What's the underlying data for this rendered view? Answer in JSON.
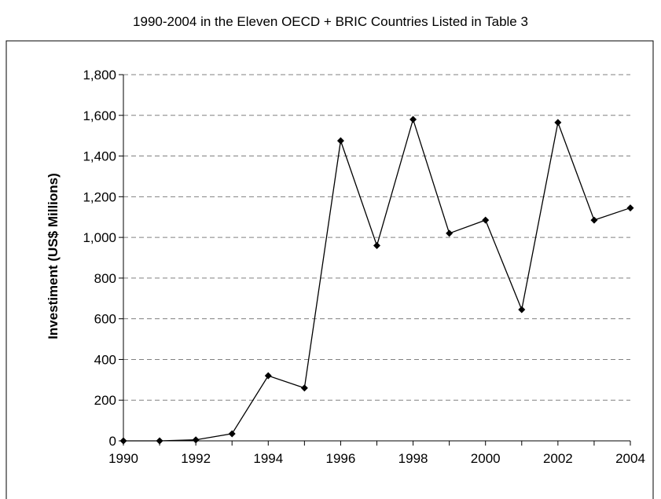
{
  "chart_data": {
    "type": "line",
    "title": "1990-2004 in the Eleven OECD + BRIC Countries Listed in Table 3",
    "xlabel": "",
    "ylabel": "Investiment (US$ Millions)",
    "x": [
      1990,
      1991,
      1992,
      1993,
      1994,
      1995,
      1996,
      1997,
      1998,
      1999,
      2000,
      2001,
      2002,
      2003,
      2004
    ],
    "x_tick_labels": [
      "1990",
      "1992",
      "1994",
      "1996",
      "1998",
      "2000",
      "2002",
      "2004"
    ],
    "x_tick_values": [
      1990,
      1992,
      1994,
      1996,
      1998,
      2000,
      2002,
      2004
    ],
    "y_tick_labels": [
      "0",
      "200",
      "400",
      "600",
      "800",
      "1,000",
      "1,200",
      "1,400",
      "1,600",
      "1,800"
    ],
    "y_tick_values": [
      0,
      200,
      400,
      600,
      800,
      1000,
      1200,
      1400,
      1600,
      1800
    ],
    "xlim": [
      1990,
      2004
    ],
    "ylim": [
      0,
      1800
    ],
    "grid": "horizontal dashed",
    "legend": "none",
    "series": [
      {
        "values": [
          0,
          0,
          5,
          35,
          320,
          260,
          1475,
          960,
          1580,
          1020,
          1085,
          645,
          1565,
          1085,
          1145
        ],
        "color": "#000000",
        "marker": "diamond"
      }
    ]
  }
}
